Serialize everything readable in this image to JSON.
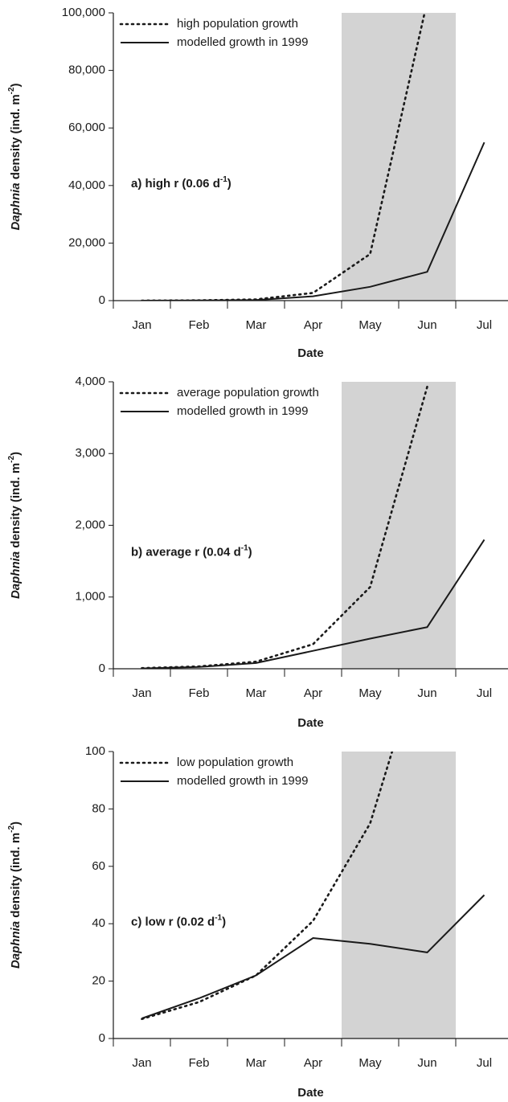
{
  "chart_data": [
    {
      "type": "line",
      "annotation": [
        "a) high r (0.06 d",
        "-1",
        ")"
      ],
      "x_label": "Date",
      "y_label": [
        "Daphnia",
        " density (ind. m",
        "-2",
        ")"
      ],
      "categories": [
        "Jan",
        "Feb",
        "Mar",
        "Apr",
        "May",
        "Jun",
        "Jul"
      ],
      "shaded_categories": [
        4,
        5
      ],
      "shade_color": "#d3d3d3",
      "series": [
        {
          "name": "high population growth",
          "color": "#1a1a1a",
          "dash": "dotted",
          "values": [
            12,
            78,
            417,
            2680,
            16200,
            104000,
            null
          ]
        },
        {
          "name": "modelled growth in 1999",
          "color": "#1a1a1a",
          "dash": "solid",
          "values": [
            0,
            50,
            200,
            1500,
            4800,
            10000,
            55000
          ]
        }
      ],
      "ylim": [
        0,
        100000
      ],
      "yticks": [
        0,
        {
          "value": 20000,
          "label": "20,000"
        },
        {
          "value": 40000,
          "label": "40,000"
        },
        {
          "value": 60000,
          "label": "60,000"
        },
        {
          "value": 80000,
          "label": "80,000"
        },
        {
          "value": 100000,
          "label": "100,000"
        }
      ],
      "legend": "upper left",
      "grid": false
    },
    {
      "type": "line",
      "annotation": [
        "b) average r (0.04 d",
        "-1",
        ")"
      ],
      "x_label": "Date",
      "y_label": [
        "Daphnia",
        " density (ind. m",
        "-2",
        ")"
      ],
      "categories": [
        "Jan",
        "Feb",
        "Mar",
        "Apr",
        "May",
        "Jun",
        "Jul"
      ],
      "shaded_categories": [
        4,
        5
      ],
      "shade_color": "#d3d3d3",
      "series": [
        {
          "name": "average population growth",
          "color": "#1a1a1a",
          "dash": "dotted",
          "values": [
            9,
            32,
            99,
            343,
            1140,
            3930,
            null
          ]
        },
        {
          "name": "modelled growth in 1999",
          "color": "#1a1a1a",
          "dash": "solid",
          "values": [
            5,
            25,
            80,
            250,
            420,
            580,
            1800
          ]
        }
      ],
      "ylim": [
        0,
        4000
      ],
      "yticks": [
        0,
        {
          "value": 1000,
          "label": "1,000"
        },
        {
          "value": 2000,
          "label": "2,000"
        },
        {
          "value": 3000,
          "label": "3,000"
        },
        {
          "value": 4000,
          "label": "4,000"
        }
      ],
      "legend": "upper left",
      "grid": false
    },
    {
      "type": "line",
      "annotation": [
        "c) low r (0.02 d",
        "-1",
        ")"
      ],
      "x_label": "Date",
      "y_label": [
        "Daphnia",
        " density (ind. m",
        "-2",
        ")"
      ],
      "categories": [
        "Jan",
        "Feb",
        "Mar",
        "Apr",
        "May",
        "Jun",
        "Jul"
      ],
      "shaded_categories": [
        4,
        5
      ],
      "shade_color": "#d3d3d3",
      "series": [
        {
          "name": "low population growth",
          "color": "#1a1a1a",
          "dash": "dotted",
          "values": [
            6.8,
            12.7,
            22,
            41,
            75,
            140,
            null
          ]
        },
        {
          "name": "modelled growth in 1999",
          "color": "#1a1a1a",
          "dash": "solid",
          "values": [
            7,
            14,
            22,
            35,
            33,
            30,
            50
          ]
        }
      ],
      "ylim": [
        0,
        100
      ],
      "yticks": [
        0,
        20,
        40,
        60,
        80,
        100
      ],
      "legend": "upper left",
      "grid": false
    }
  ]
}
